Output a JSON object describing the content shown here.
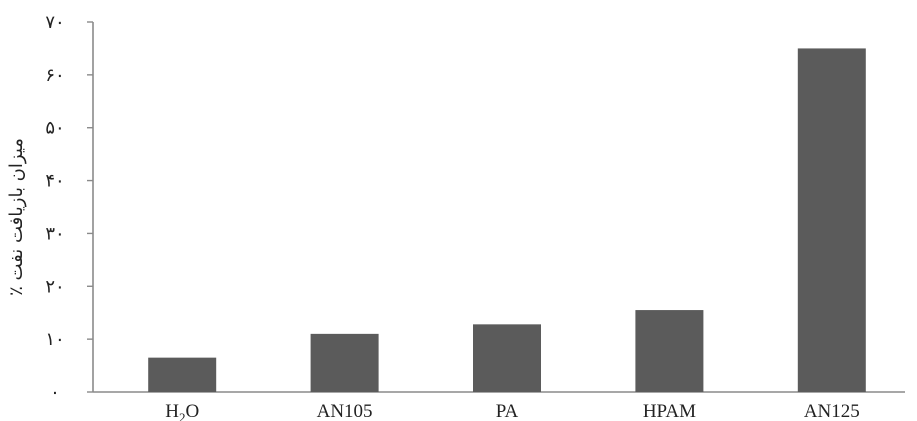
{
  "chart_data": {
    "type": "bar",
    "title": "",
    "xlabel": "",
    "ylabel": "میزان بازیافت نفت ٪",
    "ylim": [
      0,
      70
    ],
    "yticks": [
      0,
      10,
      20,
      30,
      40,
      50,
      60,
      70
    ],
    "ytick_labels": [
      "۰",
      "۱۰",
      "۲۰",
      "۳۰",
      "۴۰",
      "۵۰",
      "۶۰",
      "۷۰"
    ],
    "categories": [
      "H2O",
      "AN105",
      "PA",
      "HPAM",
      "AN125"
    ],
    "category_labels": [
      {
        "main": "H",
        "sub": "2",
        "tail": "O"
      },
      {
        "main": "AN105",
        "sub": "",
        "tail": ""
      },
      {
        "main": "PA",
        "sub": "",
        "tail": ""
      },
      {
        "main": "HPAM",
        "sub": "",
        "tail": ""
      },
      {
        "main": "AN125",
        "sub": "",
        "tail": ""
      }
    ],
    "values": [
      6.5,
      11,
      12.8,
      15.5,
      65
    ],
    "grid": false,
    "bar_color": "#5b5b5b",
    "axis_color": "#8a8a8a"
  }
}
